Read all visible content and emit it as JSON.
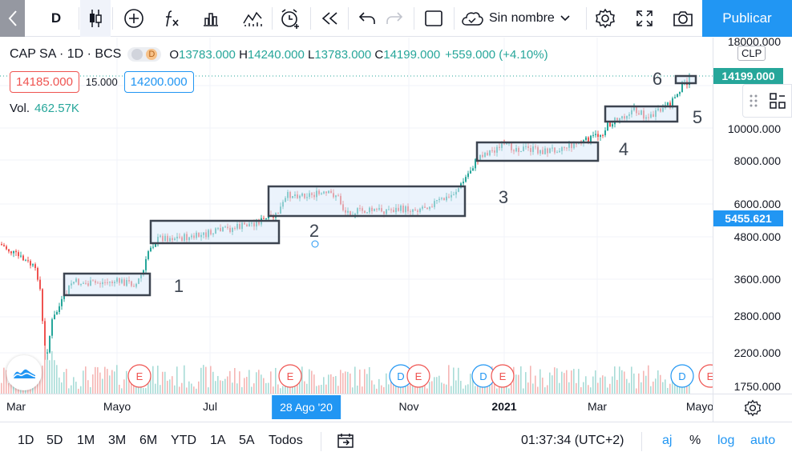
{
  "toolbar": {
    "symbol_button": "D",
    "layout_name": "Sin nombre",
    "publish_label": "Publicar"
  },
  "legend": {
    "symbol": "CAP SA · 1D · BCS",
    "pill_letter": "D",
    "o_label": "O",
    "o_value": "13783.000",
    "h_label": "H",
    "h_value": "14240.000",
    "l_label": "L",
    "l_value": "13783.000",
    "c_label": "C",
    "c_value": "14199.000",
    "change": "+559.000 (+4.10%)"
  },
  "bidask": {
    "bid": "14185.000",
    "spread": "15.000",
    "ask": "14200.000"
  },
  "volume": {
    "label": "Vol.",
    "value": "462.57K"
  },
  "price_axis": {
    "currency": "CLP",
    "ticks": [
      "18000.000",
      "10000.000",
      "8000.000",
      "6000.000",
      "4800.000",
      "3600.000",
      "2800.000",
      "2200.000",
      "1750.000"
    ],
    "last_price_tag": "14199.000",
    "crosshair_price_tag": "5455.621",
    "last_color": "#26a69a",
    "crosshair_color": "#2196f3"
  },
  "time_axis": {
    "ticks": [
      "Mar",
      "Mayo",
      "Jul",
      "Nov",
      "2021",
      "Mar",
      "Mayo"
    ],
    "crosshair_date": "28 Ago '20"
  },
  "annotations": [
    "1",
    "2",
    "3",
    "4",
    "5",
    "6"
  ],
  "events": {
    "earnings_letter": "E",
    "dividend_letter": "D"
  },
  "bottombar": {
    "ranges": [
      "1D",
      "5D",
      "1M",
      "3M",
      "6M",
      "YTD",
      "1A",
      "5A",
      "Todos"
    ],
    "clock": "01:37:34 (UTC+2)",
    "adjust": "aj",
    "percent": "%",
    "log": "log",
    "auto": "auto"
  },
  "colors": {
    "up": "#26a69a",
    "down": "#ef5350",
    "accent": "#2196f3",
    "box_fill": "#dbeafa",
    "box_border": "#3c4450"
  }
}
